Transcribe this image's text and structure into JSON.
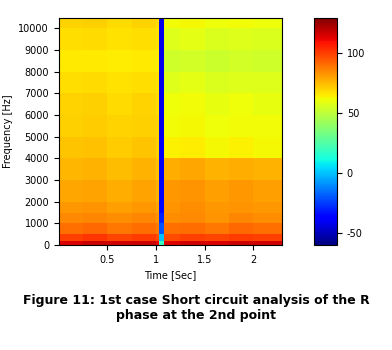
{
  "chart_data": {
    "type": "heatmap",
    "caption": "Figure 11: 1st case Short circuit analysis of the R phase at the 2nd point",
    "x_label": "Time [Sec]",
    "y_label": "Frequency [Hz]",
    "x_edges": [
      0,
      0.25,
      0.5,
      0.75,
      1.0,
      1.03,
      1.08,
      1.25,
      1.5,
      1.75,
      2.0,
      2.3
    ],
    "y_edges": [
      0,
      200,
      500,
      1000,
      1500,
      2000,
      3000,
      4000,
      5000,
      6000,
      7000,
      8000,
      9000,
      10000,
      10500
    ],
    "cells": [
      [
        115,
        118,
        116,
        117,
        112,
        20,
        114,
        116,
        115,
        117,
        116
      ],
      [
        100,
        102,
        99,
        101,
        98,
        0,
        98,
        100,
        99,
        101,
        100
      ],
      [
        90,
        92,
        89,
        91,
        88,
        -20,
        90,
        91,
        89,
        92,
        90
      ],
      [
        85,
        86,
        84,
        86,
        83,
        -30,
        84,
        85,
        83,
        86,
        84
      ],
      [
        82,
        83,
        81,
        82,
        80,
        -35,
        83,
        84,
        82,
        83,
        82
      ],
      [
        79,
        80,
        78,
        80,
        77,
        -38,
        82,
        83,
        81,
        82,
        81
      ],
      [
        76,
        77,
        75,
        77,
        74,
        -40,
        78,
        79,
        77,
        78,
        77
      ],
      [
        73,
        74,
        72,
        73,
        71,
        -40,
        64,
        65,
        63,
        64,
        63
      ],
      [
        71,
        72,
        70,
        71,
        70,
        -42,
        62,
        63,
        61,
        62,
        62
      ],
      [
        70,
        71,
        69,
        70,
        69,
        -42,
        61,
        62,
        60,
        61,
        60
      ],
      [
        68,
        69,
        67,
        68,
        67,
        -42,
        58,
        59,
        57,
        58,
        58
      ],
      [
        66,
        66,
        65,
        66,
        65,
        -42,
        54,
        55,
        53,
        55,
        54
      ],
      [
        68,
        69,
        67,
        68,
        67,
        -42,
        58,
        59,
        57,
        58,
        57
      ],
      [
        70,
        71,
        69,
        70,
        69,
        -42,
        62,
        63,
        61,
        62,
        61
      ]
    ],
    "xlim": [
      0,
      2.3
    ],
    "xticks": [
      0.5,
      1,
      1.5,
      2
    ],
    "ylim": [
      0,
      10500
    ],
    "yticks": [
      0,
      1000,
      2000,
      3000,
      4000,
      5000,
      6000,
      7000,
      8000,
      9000,
      10000
    ],
    "colorbar_range": [
      -60,
      130
    ],
    "colorbar_ticks": [
      -50,
      0,
      50,
      100
    ]
  }
}
